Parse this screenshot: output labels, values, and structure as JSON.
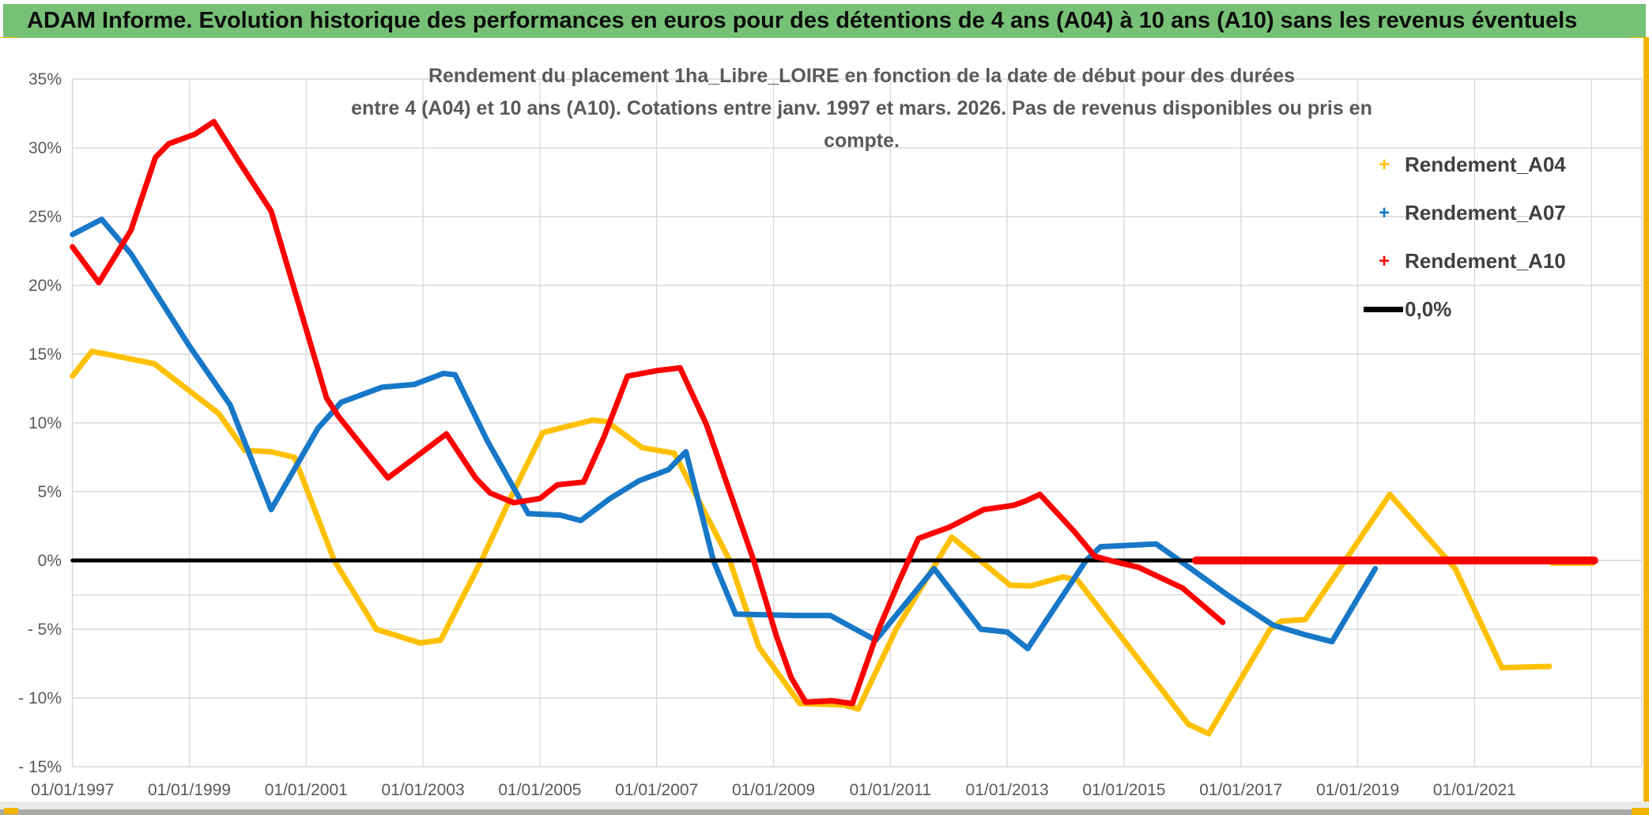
{
  "header": {
    "title": "ADAM Informe. Evolution historique des performances en euros pour des détentions de 4 ans (A04) à 10 ans (A10) sans les revenus éventuels"
  },
  "legend": {
    "items": [
      {
        "label": "Rendement_A04",
        "color": "#FFC000",
        "marker": "plus"
      },
      {
        "label": "Rendement_A07",
        "color": "#1878C8",
        "marker": "plus"
      },
      {
        "label": "Rendement_A10",
        "color": "#FF0000",
        "marker": "plus"
      },
      {
        "label": "0,0%",
        "color": "#000000",
        "marker": "line"
      }
    ]
  },
  "colors": {
    "banner_green": "#77C177",
    "accent_gold": "#F0B400",
    "gridline": "#D9D9D9",
    "axis_text": "#595959",
    "series_a04": "#FFC000",
    "series_a07": "#1878C8",
    "series_a10": "#FF0000",
    "zero_line": "#000000"
  },
  "chart_data": {
    "type": "line",
    "title_line1": "Rendement du placement 1ha_Libre_LOIRE en fonction de la date de début pour des durées",
    "title_line2": "entre 4 (A04) et 10 ans (A10). Cotations entre janv. 1997 et mars. 2026. Pas de revenus disponibles ou pris en compte.",
    "xlabel": "",
    "ylabel": "",
    "ylim": [
      -15,
      35
    ],
    "xlim": [
      1997,
      2023.85
    ],
    "grid": true,
    "yticks": [
      {
        "value": 35,
        "label": "35%"
      },
      {
        "value": 30,
        "label": "30%"
      },
      {
        "value": 25,
        "label": "25%"
      },
      {
        "value": 20,
        "label": "20%"
      },
      {
        "value": 15,
        "label": "15%"
      },
      {
        "value": 10,
        "label": "10%"
      },
      {
        "value": 5,
        "label": "5%"
      },
      {
        "value": 0,
        "label": "0%"
      },
      {
        "value": -5,
        "label": "- 5%"
      },
      {
        "value": -10,
        "label": "- 10%"
      },
      {
        "value": -15,
        "label": "- 15%"
      }
    ],
    "extra_hline_value": -2.5,
    "xticks": [
      {
        "year": 1997,
        "label": "01/01/1997"
      },
      {
        "year": 1999,
        "label": "01/01/1999"
      },
      {
        "year": 2001,
        "label": "01/01/2001"
      },
      {
        "year": 2003,
        "label": "01/01/2003"
      },
      {
        "year": 2005,
        "label": "01/01/2005"
      },
      {
        "year": 2007,
        "label": "01/01/2007"
      },
      {
        "year": 2009,
        "label": "01/01/2009"
      },
      {
        "year": 2011,
        "label": "01/01/2011"
      },
      {
        "year": 2013,
        "label": "01/01/2013"
      },
      {
        "year": 2015,
        "label": "01/01/2015"
      },
      {
        "year": 2017,
        "label": "01/01/2017"
      },
      {
        "year": 2019,
        "label": "01/01/2019"
      },
      {
        "year": 2021,
        "label": "01/01/2021"
      }
    ],
    "vgrid_years": [
      1999,
      2001,
      2003,
      2005,
      2007,
      2009,
      2011,
      2013,
      2015,
      2017,
      2019,
      2021,
      2023
    ],
    "series": [
      {
        "name": "Rendement_A04",
        "color": "#FFC000",
        "width": 7,
        "points": [
          [
            1997.0,
            13.4
          ],
          [
            1997.33,
            15.2
          ],
          [
            1997.7,
            14.9
          ],
          [
            1998.4,
            14.3
          ],
          [
            1999.5,
            10.7
          ],
          [
            1999.95,
            8.0
          ],
          [
            2000.4,
            7.9
          ],
          [
            2000.8,
            7.5
          ],
          [
            2001.48,
            0
          ],
          [
            2002.2,
            -5.0
          ],
          [
            2002.95,
            -6.0
          ],
          [
            2003.3,
            -5.8
          ],
          [
            2004.0,
            0
          ],
          [
            2004.55,
            5.0
          ],
          [
            2005.05,
            9.3
          ],
          [
            2005.9,
            10.2
          ],
          [
            2006.15,
            10.1
          ],
          [
            2006.75,
            8.2
          ],
          [
            2007.3,
            7.8
          ],
          [
            2008.25,
            0
          ],
          [
            2008.75,
            -6.3
          ],
          [
            2009.45,
            -10.4
          ],
          [
            2010.2,
            -10.5
          ],
          [
            2010.45,
            -10.8
          ],
          [
            2011.1,
            -5.0
          ],
          [
            2012.05,
            1.7
          ],
          [
            2013.05,
            -1.8
          ],
          [
            2013.4,
            -1.85
          ],
          [
            2013.95,
            -1.2
          ],
          [
            2014.2,
            -1.4
          ],
          [
            2016.1,
            -11.9
          ],
          [
            2016.45,
            -12.6
          ],
          [
            2017.5,
            -5.0
          ],
          [
            2017.7,
            -4.4
          ],
          [
            2018.1,
            -4.3
          ],
          [
            2019.55,
            4.8
          ],
          [
            2020.67,
            -0.6
          ],
          [
            2021.47,
            -7.8
          ],
          [
            2022.28,
            -7.7
          ]
        ]
      },
      {
        "name": "Rendement_A04_zeros",
        "color": "#FFC000",
        "width": 7,
        "points": [
          [
            2022.33,
            -0.2
          ],
          [
            2023.02,
            -0.2
          ]
        ]
      },
      {
        "name": "Rendement_A07",
        "color": "#1878C8",
        "width": 7,
        "points": [
          [
            1997.0,
            23.7
          ],
          [
            1997.5,
            24.8
          ],
          [
            1998.0,
            22.3
          ],
          [
            1999.0,
            15.6
          ],
          [
            1999.7,
            11.3
          ],
          [
            2000.4,
            3.7
          ],
          [
            2001.2,
            9.6
          ],
          [
            2001.6,
            11.5
          ],
          [
            2002.3,
            12.6
          ],
          [
            2002.85,
            12.8
          ],
          [
            2003.35,
            13.6
          ],
          [
            2003.55,
            13.5
          ],
          [
            2004.1,
            8.7
          ],
          [
            2004.8,
            3.4
          ],
          [
            2005.35,
            3.3
          ],
          [
            2005.7,
            2.9
          ],
          [
            2006.2,
            4.5
          ],
          [
            2006.7,
            5.8
          ],
          [
            2007.2,
            6.6
          ],
          [
            2007.5,
            7.9
          ],
          [
            2007.97,
            0
          ],
          [
            2008.35,
            -3.9
          ],
          [
            2009.4,
            -4.0
          ],
          [
            2009.97,
            -4.0
          ],
          [
            2010.75,
            -5.8
          ],
          [
            2011.75,
            -0.6
          ],
          [
            2012.55,
            -5.0
          ],
          [
            2013.0,
            -5.2
          ],
          [
            2013.35,
            -6.4
          ],
          [
            2014.35,
            0
          ],
          [
            2014.6,
            1.0
          ],
          [
            2015.55,
            1.2
          ],
          [
            2015.95,
            0
          ],
          [
            2016.8,
            -2.6
          ],
          [
            2017.55,
            -4.7
          ],
          [
            2018.1,
            -5.4
          ],
          [
            2018.56,
            -5.9
          ],
          [
            2019.3,
            -0.6
          ]
        ]
      },
      {
        "name": "zero_reference",
        "color": "#000000",
        "width": 5,
        "points": [
          [
            1997.0,
            0
          ],
          [
            2023.05,
            0
          ]
        ]
      },
      {
        "name": "Rendement_A10",
        "color": "#FF0000",
        "width": 7,
        "points": [
          [
            1997.0,
            22.8
          ],
          [
            1997.45,
            20.2
          ],
          [
            1998.0,
            24.0
          ],
          [
            1998.42,
            29.3
          ],
          [
            1998.65,
            30.3
          ],
          [
            1999.1,
            31.0
          ],
          [
            1999.42,
            31.9
          ],
          [
            1999.85,
            29.0
          ],
          [
            2000.4,
            25.4
          ],
          [
            2001.35,
            11.8
          ],
          [
            2001.55,
            10.5
          ],
          [
            2002.0,
            8.1
          ],
          [
            2002.4,
            6.0
          ],
          [
            2002.9,
            7.6
          ],
          [
            2003.4,
            9.2
          ],
          [
            2003.9,
            6.0
          ],
          [
            2004.15,
            4.9
          ],
          [
            2004.55,
            4.2
          ],
          [
            2005.0,
            4.5
          ],
          [
            2005.3,
            5.5
          ],
          [
            2005.75,
            5.7
          ],
          [
            2006.1,
            9.0
          ],
          [
            2006.5,
            13.4
          ],
          [
            2007.0,
            13.8
          ],
          [
            2007.4,
            14.0
          ],
          [
            2007.85,
            9.9
          ],
          [
            2008.66,
            0
          ],
          [
            2009.05,
            -5.5
          ],
          [
            2009.3,
            -8.5
          ],
          [
            2009.55,
            -10.3
          ],
          [
            2010.0,
            -10.2
          ],
          [
            2010.35,
            -10.4
          ],
          [
            2010.8,
            -5.0
          ],
          [
            2011.15,
            -1.5
          ],
          [
            2011.48,
            1.6
          ],
          [
            2012.0,
            2.4
          ],
          [
            2012.6,
            3.7
          ],
          [
            2013.1,
            4.0
          ],
          [
            2013.3,
            4.3
          ],
          [
            2013.56,
            4.8
          ],
          [
            2014.15,
            2.1
          ],
          [
            2014.5,
            0.3
          ],
          [
            2014.85,
            -0.1
          ],
          [
            2015.25,
            -0.5
          ],
          [
            2016.0,
            -2.0
          ],
          [
            2016.69,
            -4.5
          ]
        ]
      },
      {
        "name": "Rendement_A10_zeros",
        "color": "#FF0000",
        "width": 10,
        "points": [
          [
            2016.23,
            0
          ],
          [
            2023.05,
            0
          ]
        ]
      }
    ]
  }
}
